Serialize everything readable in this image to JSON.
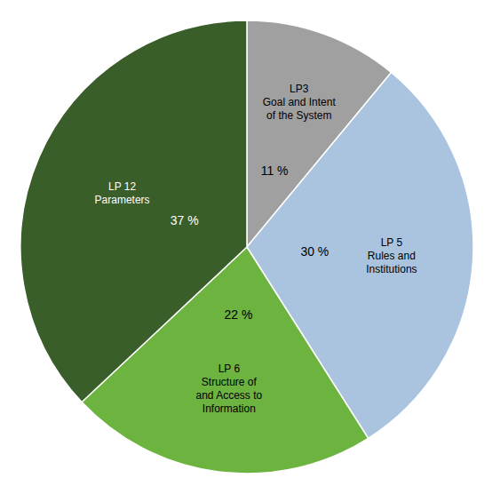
{
  "chart_data": {
    "type": "pie",
    "categories": [
      "LP3\nGoal and Intent\nof the System",
      "LP 5\nRules and\nInstitutions",
      "LP 6\nStructure of\nand Access to\nInformation",
      "LP 12\nParameters"
    ],
    "values": [
      11,
      30,
      22,
      37
    ],
    "value_labels": [
      "11 %",
      "30 %",
      "22 %",
      "37 %"
    ],
    "colors": [
      "#a0a0a0",
      "#aac4e0",
      "#6db33f",
      "#3a5e2a"
    ],
    "data_labels": true
  }
}
